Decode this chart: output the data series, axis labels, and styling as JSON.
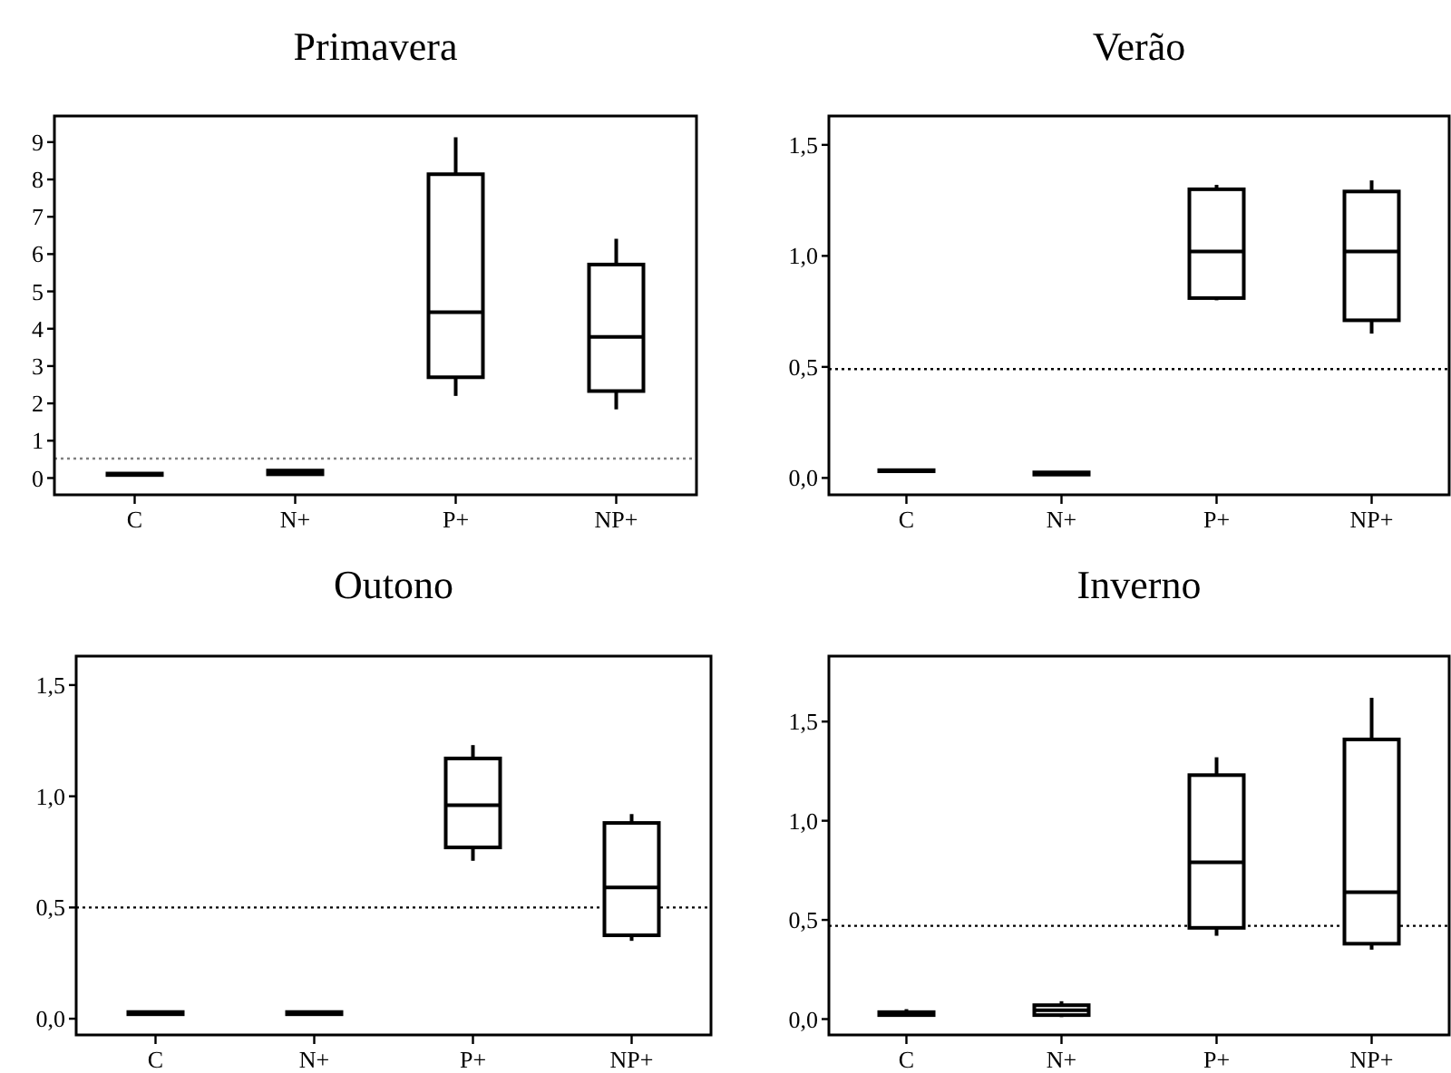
{
  "chart_data": [
    {
      "type": "box",
      "title": "Primavera",
      "categories": [
        "C",
        "N+",
        "P+",
        "NP+"
      ],
      "ylim": [
        -0.45,
        9.7
      ],
      "yticks": [
        0,
        1,
        2,
        3,
        4,
        5,
        6,
        7,
        8,
        9
      ],
      "ref_lines": [
        {
          "axis": "y",
          "value": 0.52,
          "line_style": "dotted",
          "color": "#808080"
        }
      ],
      "boxes": [
        {
          "low": 0.08,
          "q1": 0.08,
          "median": 0.1,
          "q3": 0.12,
          "high": 0.12
        },
        {
          "low": 0.08,
          "q1": 0.1,
          "median": 0.15,
          "q3": 0.2,
          "high": 0.22
        },
        {
          "low": 2.2,
          "q1": 2.7,
          "median": 4.44,
          "q3": 8.14,
          "high": 9.13
        },
        {
          "low": 1.84,
          "q1": 2.33,
          "median": 3.78,
          "q3": 5.72,
          "high": 6.41
        }
      ]
    },
    {
      "type": "box",
      "title": "Verão",
      "categories": [
        "C",
        "N+",
        "P+",
        "NP+"
      ],
      "ylim": [
        -0.076,
        1.63
      ],
      "yticks": [
        {
          "value": 0,
          "label": "0,0"
        },
        {
          "value": 0.5,
          "label": "0,5"
        },
        {
          "value": 1,
          "label": "1,0"
        },
        {
          "value": 1.5,
          "label": "1,5"
        }
      ],
      "ref_lines": [
        {
          "axis": "y",
          "value": 0.49,
          "line_style": "dotted",
          "color": "#000000"
        }
      ],
      "boxes": [
        {
          "low": 0.03,
          "q1": 0.03,
          "median": 0.03,
          "q3": 0.035,
          "high": 0.035
        },
        {
          "low": 0.015,
          "q1": 0.015,
          "median": 0.02,
          "q3": 0.025,
          "high": 0.025
        },
        {
          "low": 0.8,
          "q1": 0.81,
          "median": 1.02,
          "q3": 1.3,
          "high": 1.32
        },
        {
          "low": 0.65,
          "q1": 0.71,
          "median": 1.02,
          "q3": 1.29,
          "high": 1.34
        }
      ]
    },
    {
      "type": "box",
      "title": "Outono",
      "categories": [
        "C",
        "N+",
        "P+",
        "NP+"
      ],
      "ylim": [
        -0.073,
        1.63
      ],
      "yticks": [
        {
          "value": 0,
          "label": "0,0"
        },
        {
          "value": 0.5,
          "label": "0,5"
        },
        {
          "value": 1,
          "label": "1,0"
        },
        {
          "value": 1.5,
          "label": "1,5"
        }
      ],
      "ref_lines": [
        {
          "axis": "y",
          "value": 0.5,
          "line_style": "dotted",
          "color": "#000000"
        }
      ],
      "boxes": [
        {
          "low": 0.02,
          "q1": 0.02,
          "median": 0.025,
          "q3": 0.03,
          "high": 0.03
        },
        {
          "low": 0.02,
          "q1": 0.02,
          "median": 0.025,
          "q3": 0.03,
          "high": 0.03
        },
        {
          "low": 0.71,
          "q1": 0.77,
          "median": 0.96,
          "q3": 1.17,
          "high": 1.23
        },
        {
          "low": 0.35,
          "q1": 0.375,
          "median": 0.59,
          "q3": 0.88,
          "high": 0.92
        }
      ]
    },
    {
      "type": "box",
      "title": "Inverno",
      "categories": [
        "C",
        "N+",
        "P+",
        "NP+"
      ],
      "ylim": [
        -0.08,
        1.83
      ],
      "yticks": [
        {
          "value": 0,
          "label": "0,0"
        },
        {
          "value": 0.5,
          "label": "0,5"
        },
        {
          "value": 1,
          "label": "1,0"
        },
        {
          "value": 1.5,
          "label": "1,5"
        }
      ],
      "ref_lines": [
        {
          "axis": "y",
          "value": 0.47,
          "line_style": "dotted",
          "color": "#000000"
        }
      ],
      "boxes": [
        {
          "low": 0.02,
          "q1": 0.02,
          "median": 0.03,
          "q3": 0.035,
          "high": 0.05
        },
        {
          "low": 0.01,
          "q1": 0.02,
          "median": 0.045,
          "q3": 0.07,
          "high": 0.09
        },
        {
          "low": 0.42,
          "q1": 0.46,
          "median": 0.79,
          "q3": 1.23,
          "high": 1.32
        },
        {
          "low": 0.35,
          "q1": 0.38,
          "median": 0.64,
          "q3": 1.41,
          "high": 1.62
        }
      ]
    }
  ]
}
